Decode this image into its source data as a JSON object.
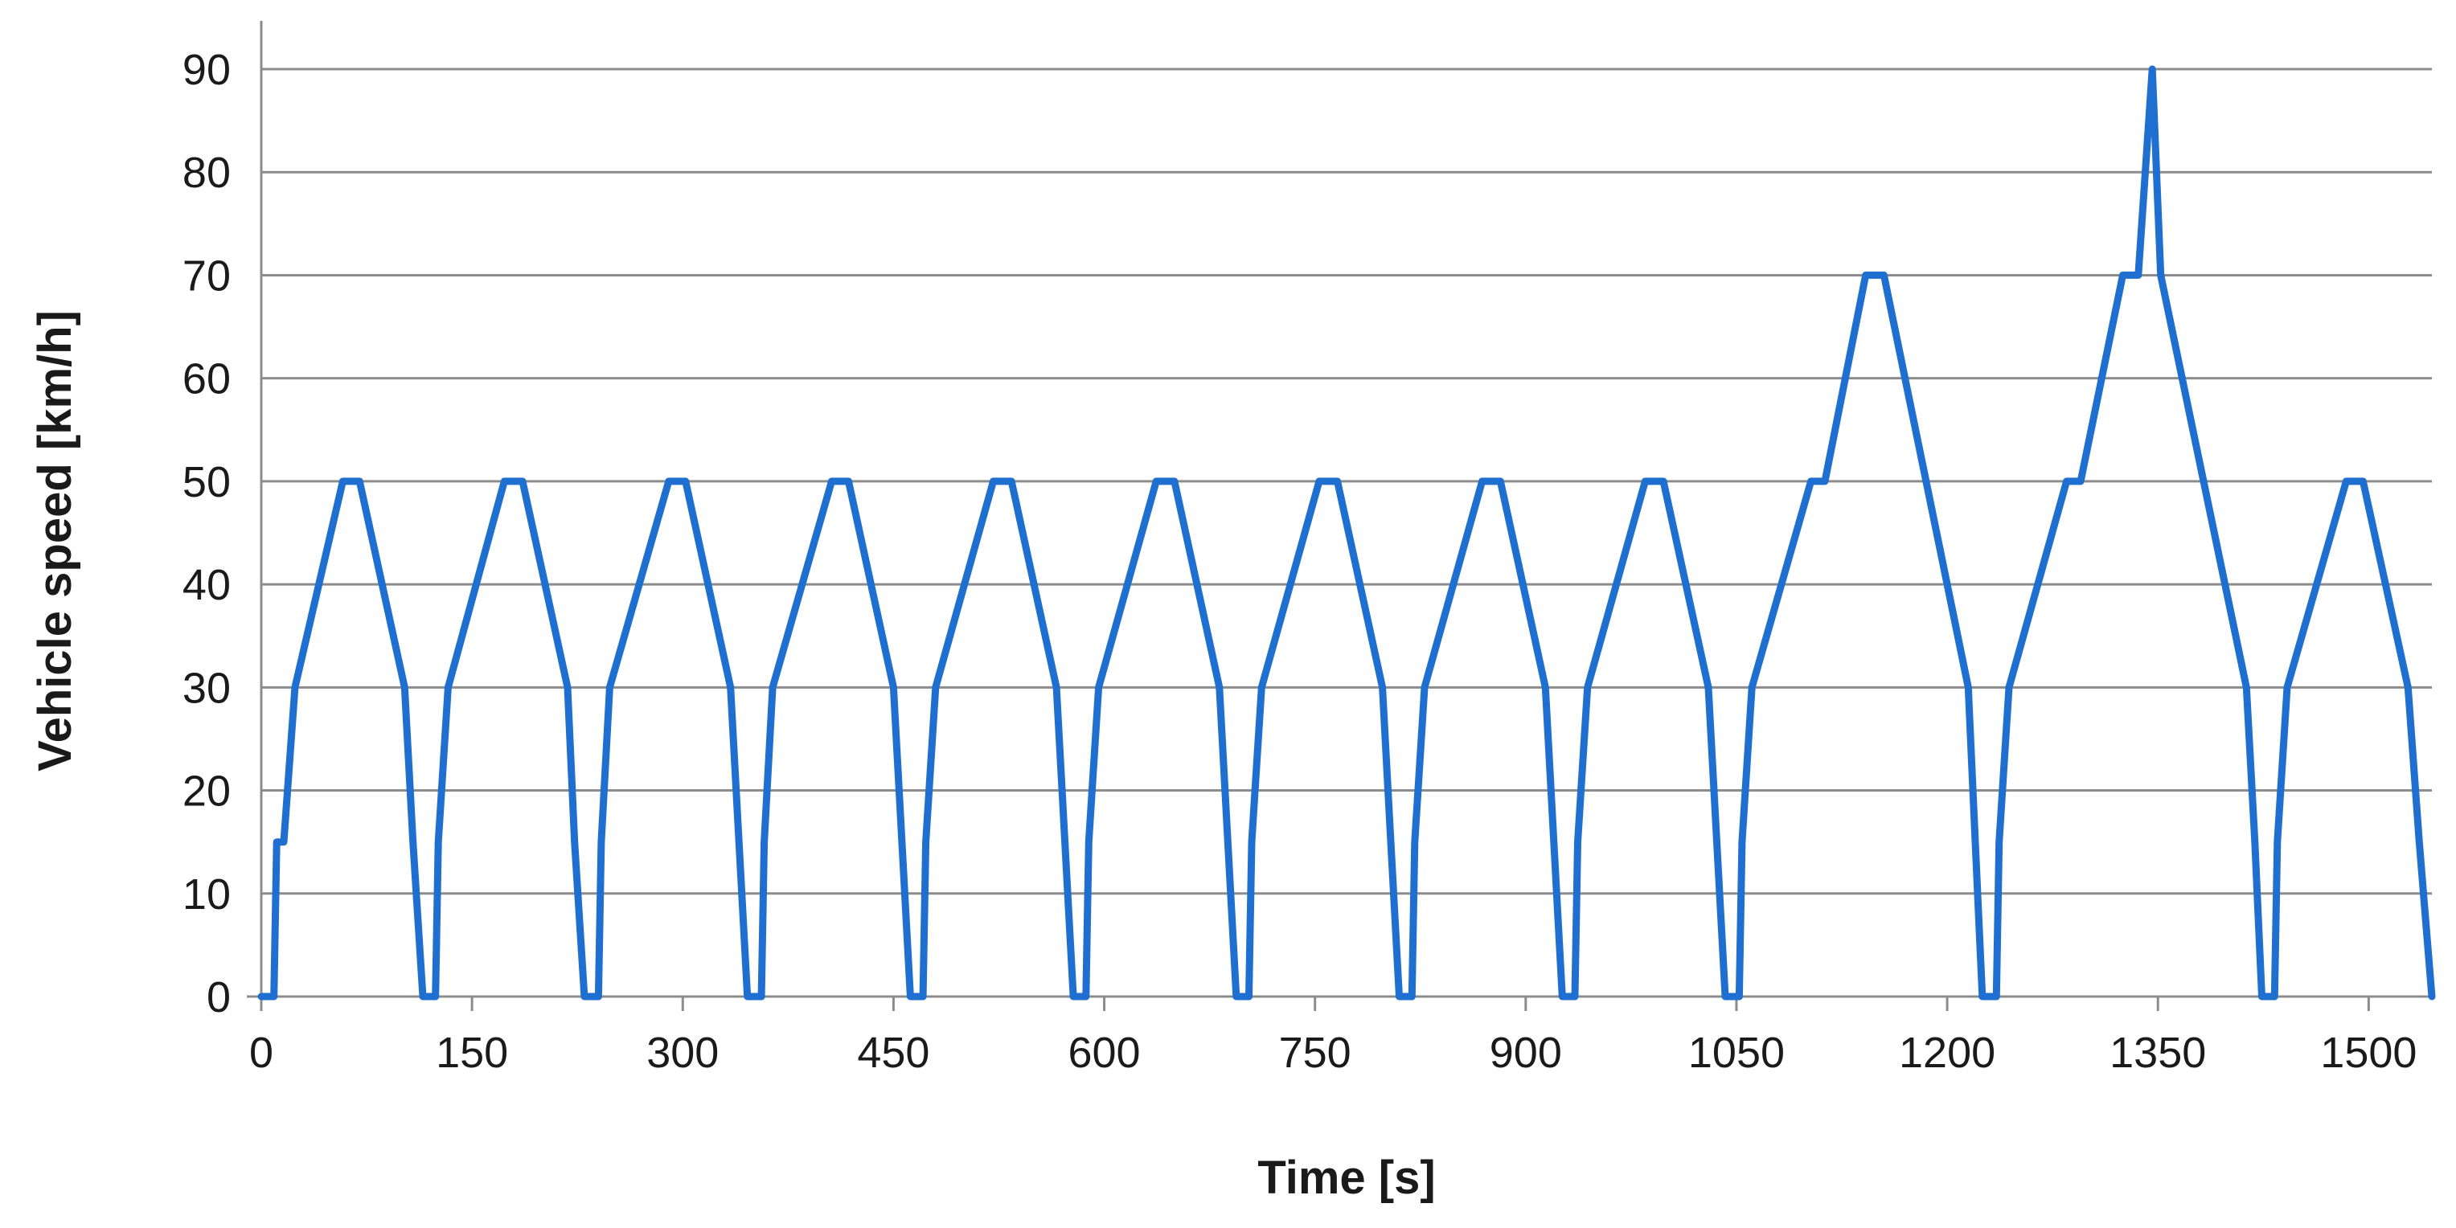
{
  "chart_data": {
    "type": "line",
    "xlabel": "Time [s]",
    "ylabel": "Vehicle speed [km/h]",
    "xlim": [
      0,
      1545
    ],
    "ylim": [
      0,
      90
    ],
    "x_ticks": [
      0,
      150,
      300,
      450,
      600,
      750,
      900,
      1050,
      1200,
      1350,
      1500
    ],
    "y_ticks": [
      0,
      10,
      20,
      30,
      40,
      50,
      60,
      70,
      80,
      90
    ],
    "grid": "horizontal",
    "legend": "none",
    "colors": {
      "series": "#1f6fd1",
      "grid": "#8c8c8c",
      "text": "#1a1a1a"
    },
    "series": [
      {
        "points": [
          [
            0,
            0
          ],
          [
            9,
            0
          ],
          [
            11,
            15
          ],
          [
            16,
            15
          ],
          [
            24,
            30
          ],
          [
            58,
            50
          ],
          [
            70,
            50
          ],
          [
            102,
            30
          ],
          [
            108,
            15
          ],
          [
            115,
            0
          ],
          [
            124,
            0
          ],
          [
            126,
            15
          ],
          [
            133,
            30
          ],
          [
            173,
            50
          ],
          [
            186,
            50
          ],
          [
            218,
            30
          ],
          [
            223,
            15
          ],
          [
            230,
            0
          ],
          [
            240,
            0
          ],
          [
            242,
            15
          ],
          [
            248,
            30
          ],
          [
            290,
            50
          ],
          [
            302,
            50
          ],
          [
            334,
            30
          ],
          [
            340,
            15
          ],
          [
            346,
            0
          ],
          [
            356,
            0
          ],
          [
            358,
            15
          ],
          [
            364,
            30
          ],
          [
            406,
            50
          ],
          [
            418,
            50
          ],
          [
            450,
            30
          ],
          [
            456,
            15
          ],
          [
            462,
            0
          ],
          [
            471,
            0
          ],
          [
            473,
            15
          ],
          [
            480,
            30
          ],
          [
            521,
            50
          ],
          [
            534,
            50
          ],
          [
            566,
            30
          ],
          [
            572,
            15
          ],
          [
            578,
            0
          ],
          [
            587,
            0
          ],
          [
            589,
            15
          ],
          [
            596,
            30
          ],
          [
            637,
            50
          ],
          [
            650,
            50
          ],
          [
            682,
            30
          ],
          [
            688,
            15
          ],
          [
            694,
            0
          ],
          [
            703,
            0
          ],
          [
            705,
            15
          ],
          [
            712,
            30
          ],
          [
            753,
            50
          ],
          [
            766,
            50
          ],
          [
            798,
            30
          ],
          [
            804,
            15
          ],
          [
            810,
            0
          ],
          [
            819,
            0
          ],
          [
            821,
            15
          ],
          [
            828,
            30
          ],
          [
            869,
            50
          ],
          [
            882,
            50
          ],
          [
            914,
            30
          ],
          [
            920,
            15
          ],
          [
            926,
            0
          ],
          [
            935,
            0
          ],
          [
            937,
            15
          ],
          [
            944,
            30
          ],
          [
            985,
            50
          ],
          [
            998,
            50
          ],
          [
            1030,
            30
          ],
          [
            1036,
            15
          ],
          [
            1042,
            0
          ],
          [
            1052,
            0
          ],
          [
            1054,
            15
          ],
          [
            1061,
            30
          ],
          [
            1103,
            50
          ],
          [
            1113,
            50
          ],
          [
            1142,
            70
          ],
          [
            1155,
            70
          ],
          [
            1215,
            30
          ],
          [
            1220,
            15
          ],
          [
            1225,
            0
          ],
          [
            1235,
            0
          ],
          [
            1237,
            15
          ],
          [
            1244,
            30
          ],
          [
            1285,
            50
          ],
          [
            1295,
            50
          ],
          [
            1325,
            70
          ],
          [
            1336,
            70
          ],
          [
            1346,
            90
          ],
          [
            1352,
            70
          ],
          [
            1413,
            30
          ],
          [
            1419,
            15
          ],
          [
            1424,
            0
          ],
          [
            1433,
            0
          ],
          [
            1435,
            15
          ],
          [
            1442,
            30
          ],
          [
            1484,
            50
          ],
          [
            1496,
            50
          ],
          [
            1528,
            30
          ],
          [
            1536,
            15
          ],
          [
            1545,
            0
          ]
        ]
      }
    ]
  }
}
